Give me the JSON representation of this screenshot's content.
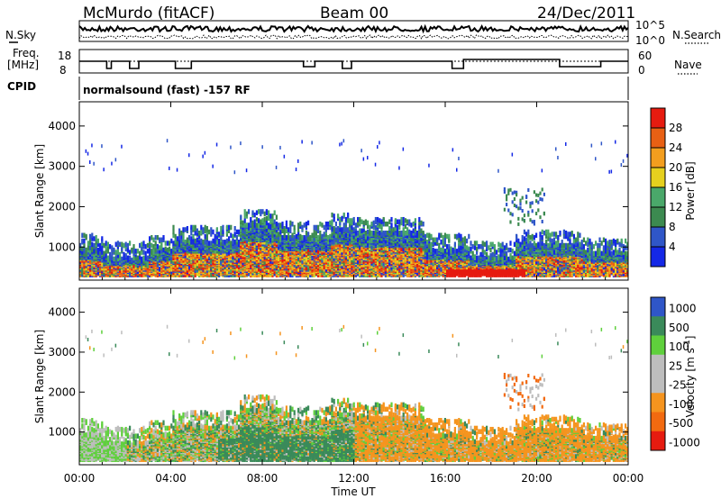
{
  "header": {
    "station": "McMurdo (fitACF)",
    "beam": "Beam 00",
    "date": "24/Dec/2011"
  },
  "sky_panel": {
    "left_label": "N.Sky",
    "right_label": "N.Search",
    "right_ticks": [
      "10^5",
      "10^0"
    ]
  },
  "freq_panel": {
    "left_label_1": "Freq.",
    "left_label_2": "[MHz]",
    "left_ticks": [
      "18",
      "8"
    ],
    "right_label": "Nave",
    "right_ticks": [
      "60",
      "0"
    ]
  },
  "cpid_panel": {
    "label": "CPID",
    "mode": "normalsound (fast) -157 RF"
  },
  "time_axis": {
    "title": "Time UT",
    "ticks": [
      "00:00",
      "04:00",
      "08:00",
      "12:00",
      "16:00",
      "20:00",
      "00:00"
    ]
  },
  "colors": {
    "power_scale": [
      "#1428e6",
      "#2f56c8",
      "#3c8a50",
      "#4aa86a",
      "#e6d01e",
      "#f39e1e",
      "#e86014",
      "#e61b10"
    ],
    "velocity_scale": [
      "#e61b10",
      "#f26a10",
      "#f5941e",
      "#bdbdbd",
      "#bdbdbd",
      "#5fd03c",
      "#3a8a5a",
      "#2f56c8"
    ]
  },
  "chart_data": [
    {
      "type": "heatmap",
      "title": "",
      "xlabel": "Time UT",
      "ylabel": "Slant Range [km]",
      "x_range_hours": [
        0,
        24
      ],
      "ylim": [
        180,
        4600
      ],
      "yticks": [
        1000,
        2000,
        3000,
        4000
      ],
      "colorbar_label": "Power [dB]",
      "colorbar_ticks": [
        "4",
        "8",
        "12",
        "16",
        "20",
        "24",
        "28"
      ],
      "colorbar_range": [
        0,
        32
      ],
      "scatter_layers": [
        {
          "name": "near-range",
          "time_hours": [
            0,
            24
          ],
          "range_km": [
            250,
            1500
          ],
          "level": "low-high"
        },
        {
          "name": "far-range",
          "time_hours": [
            0,
            24
          ],
          "range_km": [
            2800,
            3600
          ],
          "level": "low"
        },
        {
          "name": "mid-range 19-20h",
          "time_hours": [
            18.5,
            20.3
          ],
          "range_km": [
            1500,
            2400
          ],
          "level": "moderate"
        }
      ]
    },
    {
      "type": "heatmap",
      "title": "",
      "xlabel": "Time UT",
      "ylabel": "Slant Range [km]",
      "x_range_hours": [
        0,
        24
      ],
      "ylim": [
        180,
        4600
      ],
      "yticks": [
        1000,
        2000,
        3000,
        4000
      ],
      "colorbar_label": "Velocity [m s^-1]",
      "colorbar_ticks": [
        "1000",
        "500",
        "100",
        "25",
        "-25",
        "-100",
        "-500",
        "-1000"
      ]
    }
  ]
}
